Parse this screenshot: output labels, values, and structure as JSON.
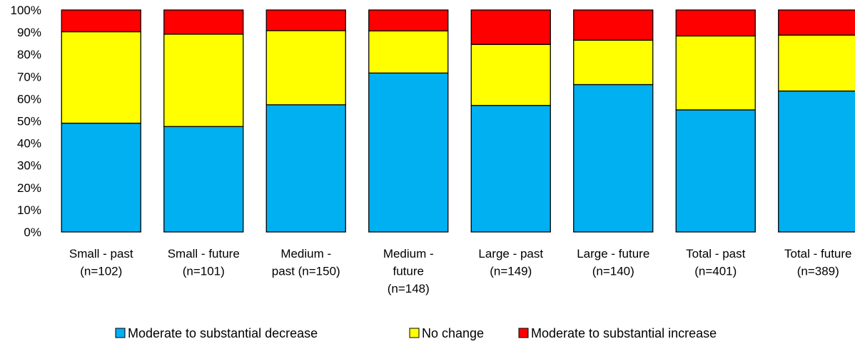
{
  "chart_data": {
    "type": "bar",
    "stacked": true,
    "normalized": true,
    "categories": [
      [
        "Small - past",
        "(n=102)"
      ],
      [
        "Small - future",
        "(n=101)"
      ],
      [
        "Medium -",
        "past (n=150)"
      ],
      [
        "Medium -",
        "future",
        "(n=148)"
      ],
      [
        "Large - past",
        "(n=149)"
      ],
      [
        "Large - future",
        "(n=140)"
      ],
      [
        "Total - past",
        "(n=401)"
      ],
      [
        "Total - future",
        "(n=389)"
      ]
    ],
    "series": [
      {
        "name": "Moderate to substantial decrease",
        "color": "#00B0F0",
        "values": [
          49,
          47.5,
          57.3,
          71.6,
          57,
          66.4,
          55,
          63.5
        ]
      },
      {
        "name": "No change",
        "color": "#FFFF00",
        "values": [
          41.2,
          41.6,
          33.4,
          19,
          27.5,
          20,
          33.3,
          25.2
        ]
      },
      {
        "name": "Moderate to substantial increase",
        "color": "#FF0000",
        "values": [
          9.8,
          10.9,
          9.3,
          9.4,
          15.5,
          13.6,
          11.7,
          11.3
        ]
      }
    ],
    "yticks": [
      "0%",
      "10%",
      "20%",
      "30%",
      "40%",
      "50%",
      "60%",
      "70%",
      "80%",
      "90%",
      "100%"
    ],
    "ylim": [
      0,
      100
    ],
    "title": "",
    "xlabel": "",
    "ylabel": "",
    "grid": false,
    "legend_position": "bottom"
  }
}
